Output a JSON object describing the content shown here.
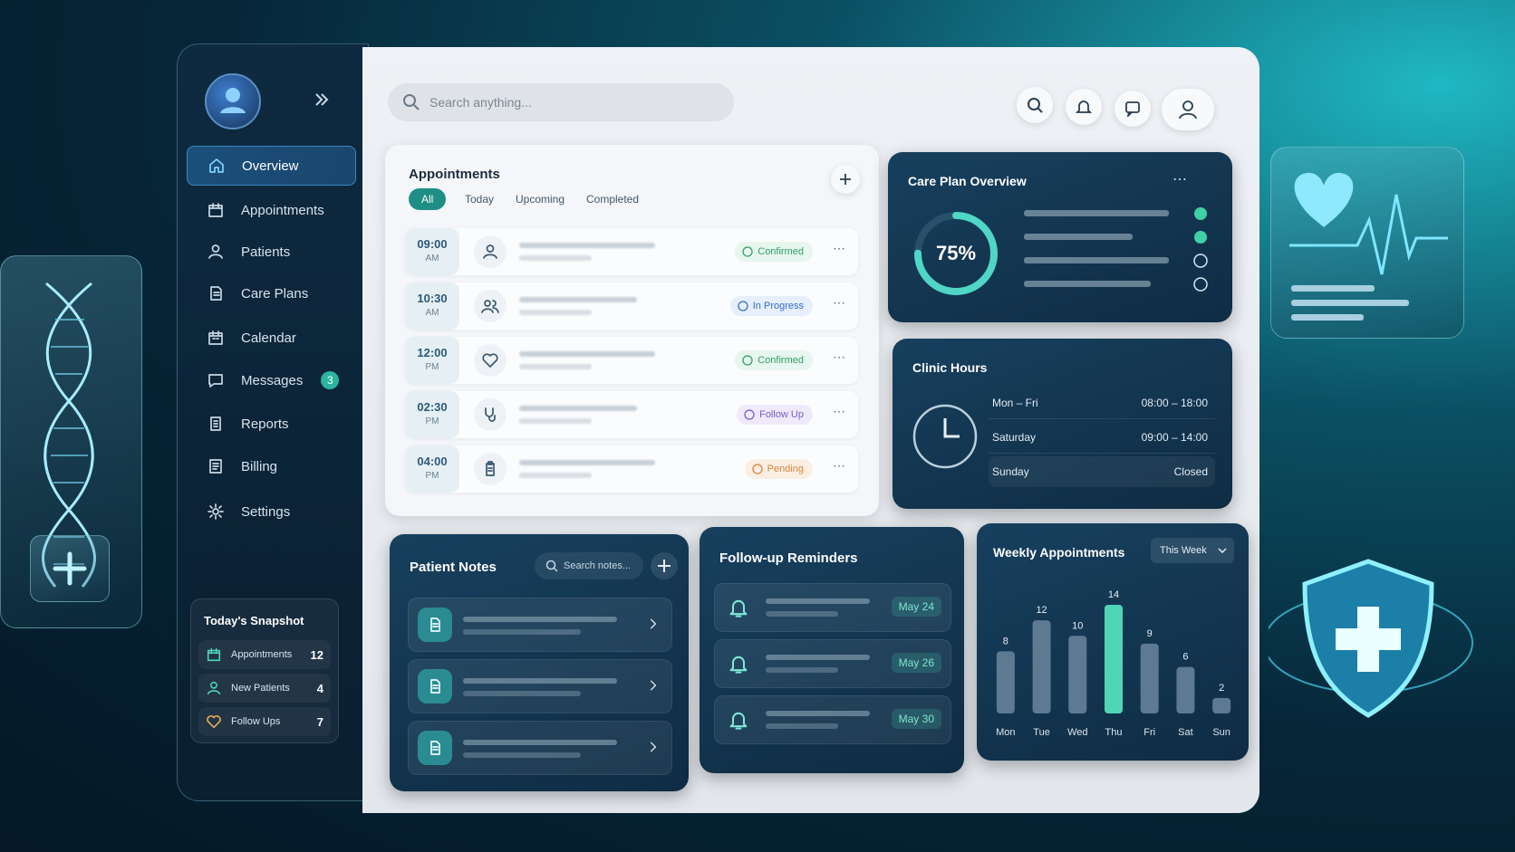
{
  "search": {
    "placeholder": "Search anything..."
  },
  "sidebar": {
    "nav": [
      {
        "label": "Overview"
      },
      {
        "label": "Appointments"
      },
      {
        "label": "Patients"
      },
      {
        "label": "Care Plans"
      },
      {
        "label": "Calendar"
      },
      {
        "label": "Messages",
        "badge": 3
      },
      {
        "label": "Reports"
      },
      {
        "label": "Billing"
      },
      {
        "label": "Settings"
      }
    ],
    "snapshot": {
      "title": "Today's Snapshot",
      "items": [
        {
          "label": "Appointments",
          "count": 12
        },
        {
          "label": "New Patients",
          "count": 4
        },
        {
          "label": "Follow Ups",
          "count": 7
        }
      ]
    }
  },
  "appointments": {
    "title": "Appointments",
    "tabs": [
      "All",
      "Today",
      "Upcoming",
      "Completed"
    ],
    "rows": [
      {
        "time": "09:00",
        "period": "AM",
        "status": "Confirmed"
      },
      {
        "time": "10:30",
        "period": "AM",
        "status": "In Progress"
      },
      {
        "time": "12:00",
        "period": "PM",
        "status": "Confirmed"
      },
      {
        "time": "02:30",
        "period": "PM",
        "status": "Follow Up"
      },
      {
        "time": "04:00",
        "period": "PM",
        "status": "Pending"
      }
    ]
  },
  "care_plan": {
    "title": "Care Plan Overview",
    "progress": {
      "value": 75,
      "label": "75%"
    }
  },
  "clinic_hours": {
    "title": "Clinic Hours",
    "rows": [
      {
        "days": "Mon – Fri",
        "hours": "08:00 – 18:00"
      },
      {
        "days": "Saturday",
        "hours": "09:00 – 14:00"
      },
      {
        "days": "Sunday",
        "hours": "Closed"
      }
    ]
  },
  "patient_notes": {
    "title": "Patient Notes",
    "search_placeholder": "Search notes..."
  },
  "reminders": {
    "title": "Follow-up Reminders",
    "dates": [
      "May 24",
      "May 26",
      "May 30"
    ]
  },
  "chart_data": {
    "type": "bar",
    "title": "Weekly Appointments",
    "period": "This Week",
    "categories": [
      "Mon",
      "Tue",
      "Wed",
      "Thu",
      "Fri",
      "Sat",
      "Sun"
    ],
    "values": [
      8,
      12,
      10,
      14,
      9,
      6,
      2
    ],
    "colors": [
      "#5d7a92",
      "#5d7a92",
      "#5d7a92",
      "#4fd6b6",
      "#5d7a92",
      "#5d7a92",
      "#5d7a92"
    ]
  }
}
